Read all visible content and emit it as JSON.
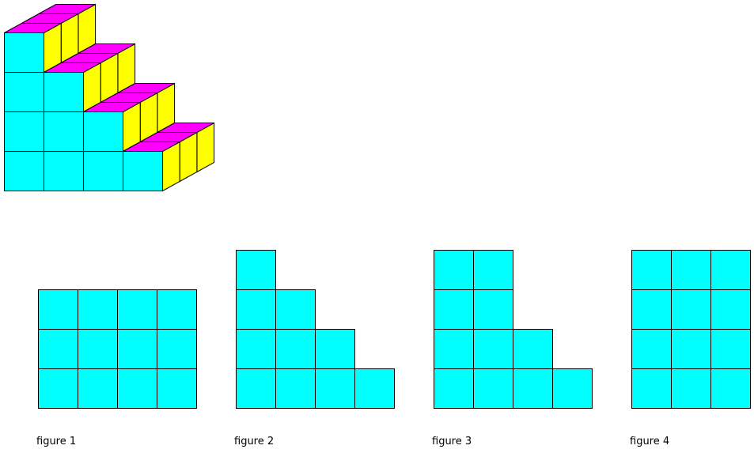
{
  "colors": {
    "front": "#00ffff",
    "side": "#ffff00",
    "top": "#ff00ff",
    "edge": "#000000"
  },
  "solid": {
    "column_heights": [
      4,
      3,
      2,
      1
    ],
    "depth": 3
  },
  "figures": [
    {
      "label": "figure 1",
      "column_heights": [
        3,
        3,
        3,
        3
      ]
    },
    {
      "label": "figure 2",
      "column_heights": [
        4,
        3,
        2,
        1
      ]
    },
    {
      "label": "figure 3",
      "column_heights": [
        4,
        4,
        2,
        1
      ]
    },
    {
      "label": "figure 4",
      "column_heights": [
        4,
        4,
        4
      ]
    }
  ]
}
